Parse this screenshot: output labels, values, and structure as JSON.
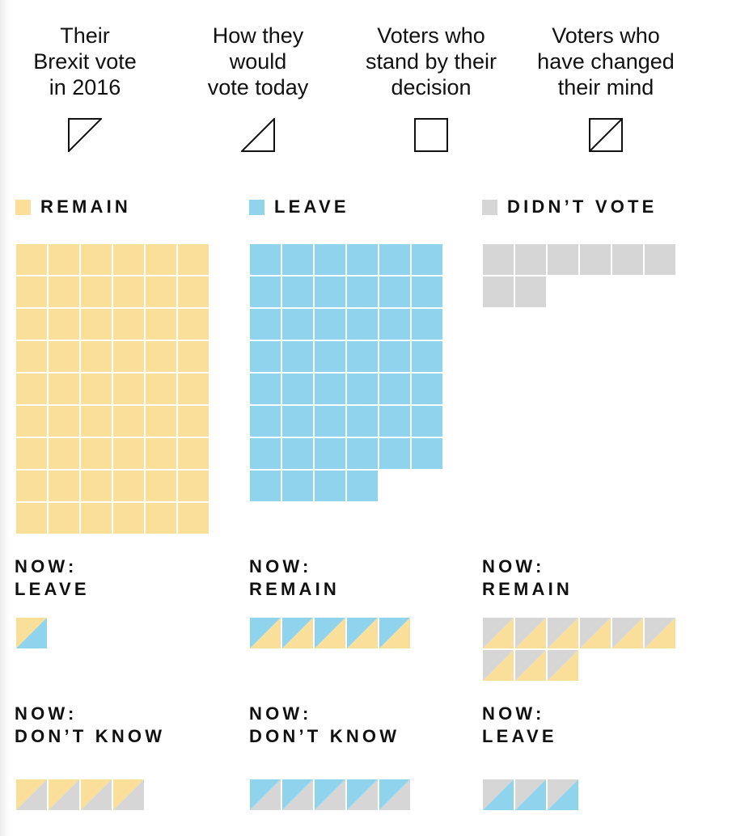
{
  "colors": {
    "remain": "#f9df99",
    "leave": "#8fd3ec",
    "didnt_vote": "#d6d6d6",
    "stroke": "#111111"
  },
  "legend": [
    {
      "lines": [
        "Their",
        "Brexit vote",
        "in 2016"
      ],
      "icon": "top-left-triangle-icon"
    },
    {
      "lines": [
        "How they",
        "would",
        "vote today"
      ],
      "icon": "bottom-right-triangle-icon"
    },
    {
      "lines": [
        "Voters who",
        "stand by their",
        "decision"
      ],
      "icon": "square-icon"
    },
    {
      "lines": [
        "Voters who",
        "have changed",
        "their mind"
      ],
      "icon": "split-square-icon"
    }
  ],
  "categories": [
    {
      "key": "remain",
      "label": "REMAIN",
      "stand_by_count": 54
    },
    {
      "key": "leave",
      "label": "LEAVE",
      "stand_by_count": 46
    },
    {
      "key": "didnt_vote",
      "label": "DIDN’T VOTE",
      "stand_by_count": 8
    }
  ],
  "changed": [
    {
      "from": "remain",
      "to": "leave",
      "now_label": "NOW:",
      "to_label": "LEAVE",
      "count": 1
    },
    {
      "from": "leave",
      "to": "remain",
      "now_label": "NOW:",
      "to_label": "REMAIN",
      "count": 5
    },
    {
      "from": "didnt_vote",
      "to": "remain",
      "now_label": "NOW:",
      "to_label": "REMAIN",
      "count": 9
    },
    {
      "from": "remain",
      "to": "dont_know",
      "now_label": "NOW:",
      "to_label": "DON’T KNOW",
      "count": 4
    },
    {
      "from": "leave",
      "to": "dont_know",
      "now_label": "NOW:",
      "to_label": "DON’T KNOW",
      "count": 5
    },
    {
      "from": "didnt_vote",
      "to": "leave",
      "now_label": "NOW:",
      "to_label": "LEAVE",
      "count": 3
    }
  ]
}
